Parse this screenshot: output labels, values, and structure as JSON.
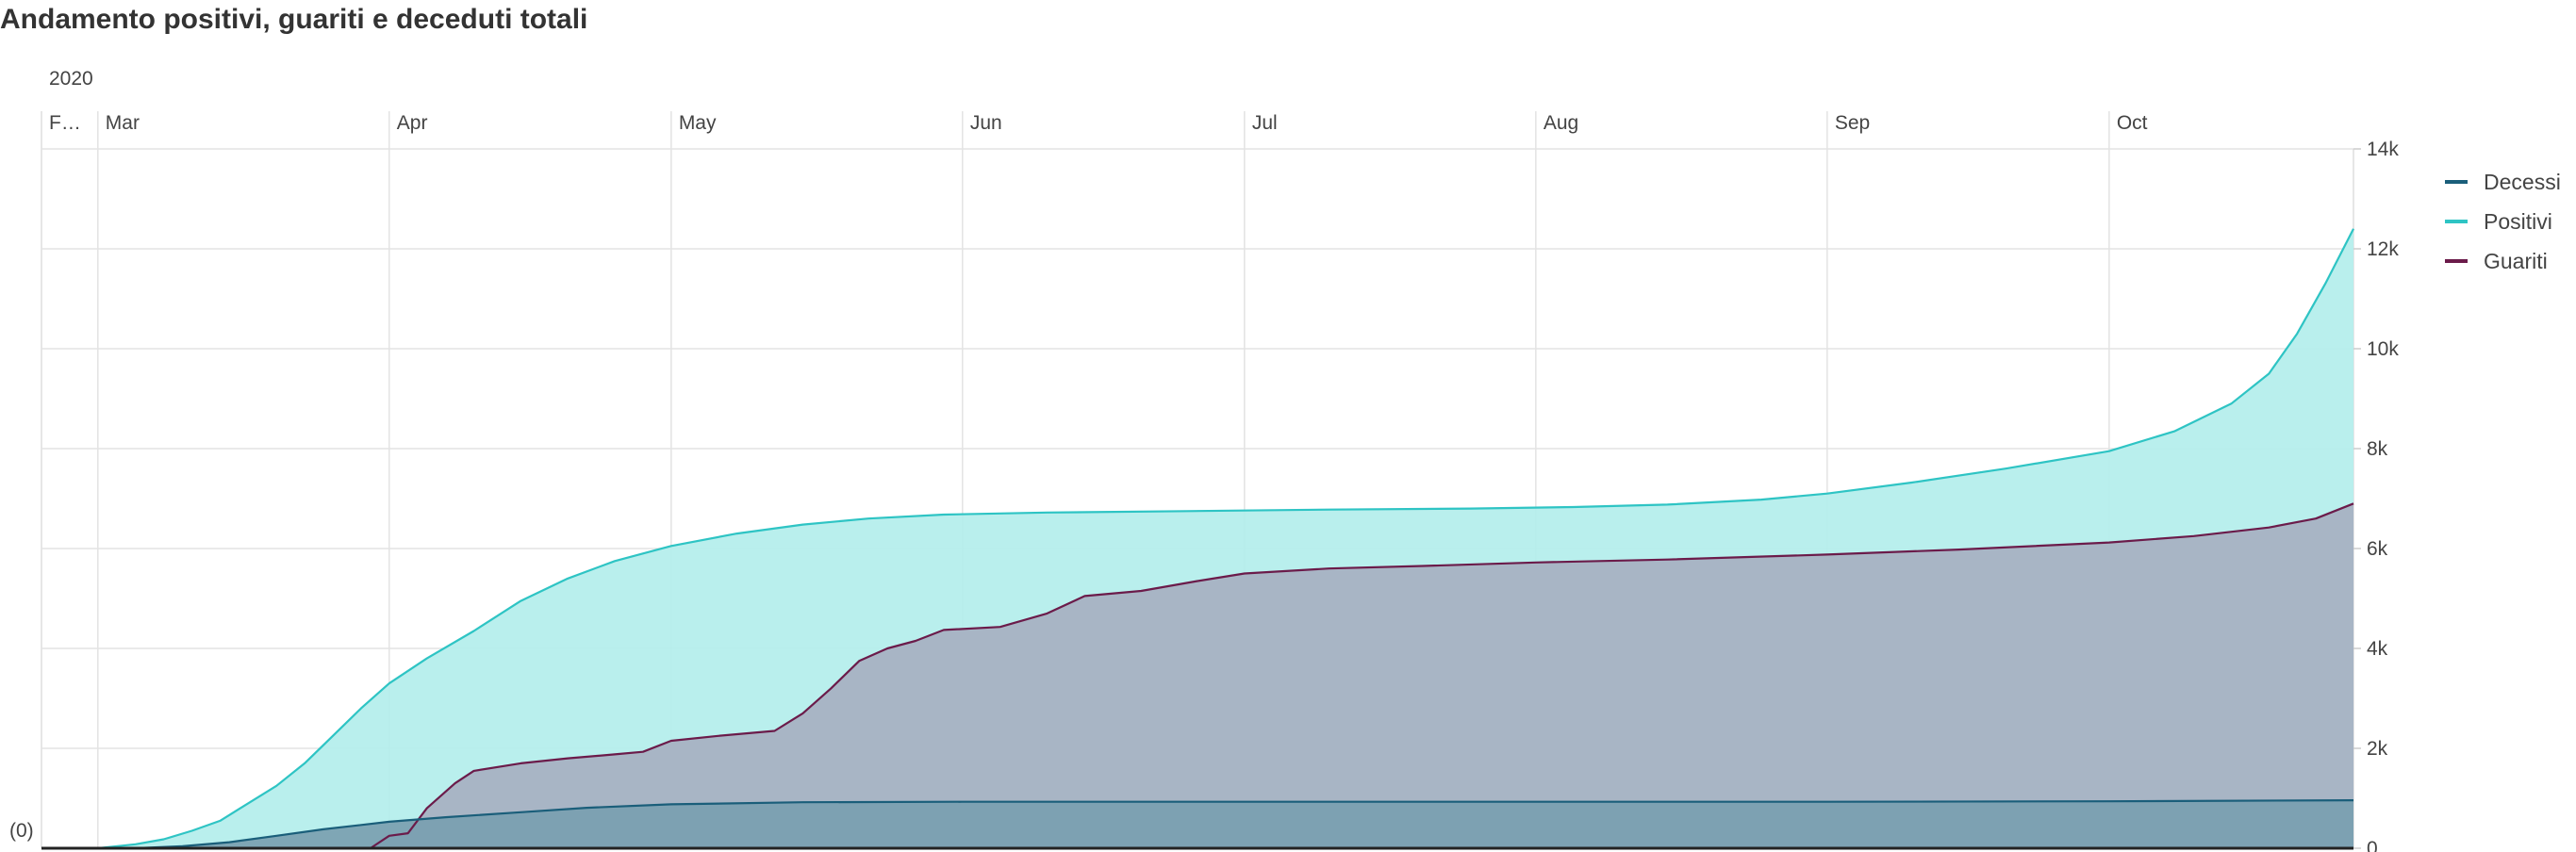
{
  "title": "Andamento positivi, guariti e deceduti totali",
  "chart_data": {
    "type": "area",
    "title": "Andamento positivi, guariti e deceduti totali",
    "year_label": "2020",
    "x_ticks": [
      {
        "label": "F…",
        "date": "2020-02-24"
      },
      {
        "label": "Mar",
        "date": "2020-03-01"
      },
      {
        "label": "Apr",
        "date": "2020-04-01"
      },
      {
        "label": "May",
        "date": "2020-05-01"
      },
      {
        "label": "Jun",
        "date": "2020-06-01"
      },
      {
        "label": "Jul",
        "date": "2020-07-01"
      },
      {
        "label": "Aug",
        "date": "2020-08-01"
      },
      {
        "label": "Sep",
        "date": "2020-09-01"
      },
      {
        "label": "Oct",
        "date": "2020-10-01"
      }
    ],
    "y_ticks": [
      {
        "label": "0",
        "value": 0
      },
      {
        "label": "2k",
        "value": 2000
      },
      {
        "label": "4k",
        "value": 4000
      },
      {
        "label": "6k",
        "value": 6000
      },
      {
        "label": "8k",
        "value": 8000
      },
      {
        "label": "10k",
        "value": 10000
      },
      {
        "label": "12k",
        "value": 12000
      },
      {
        "label": "14k",
        "value": 14000
      }
    ],
    "ylim": [
      0,
      14000
    ],
    "xlim": [
      "2020-02-24",
      "2020-10-27"
    ],
    "zero_label": "(0)",
    "grid": true,
    "legend_position": "right",
    "series": [
      {
        "name": "Positivi",
        "color": "#2ec4c4",
        "fill": "#b3eeec",
        "points": [
          [
            "2020-02-24",
            0
          ],
          [
            "2020-03-01",
            0
          ],
          [
            "2020-03-05",
            80
          ],
          [
            "2020-03-08",
            180
          ],
          [
            "2020-03-11",
            350
          ],
          [
            "2020-03-14",
            550
          ],
          [
            "2020-03-17",
            900
          ],
          [
            "2020-03-20",
            1250
          ],
          [
            "2020-03-23",
            1700
          ],
          [
            "2020-03-26",
            2250
          ],
          [
            "2020-03-29",
            2800
          ],
          [
            "2020-04-01",
            3300
          ],
          [
            "2020-04-05",
            3800
          ],
          [
            "2020-04-10",
            4350
          ],
          [
            "2020-04-15",
            4950
          ],
          [
            "2020-04-20",
            5400
          ],
          [
            "2020-04-25",
            5750
          ],
          [
            "2020-05-01",
            6050
          ],
          [
            "2020-05-08",
            6300
          ],
          [
            "2020-05-15",
            6480
          ],
          [
            "2020-05-22",
            6600
          ],
          [
            "2020-05-30",
            6680
          ],
          [
            "2020-06-10",
            6720
          ],
          [
            "2020-06-25",
            6750
          ],
          [
            "2020-07-10",
            6780
          ],
          [
            "2020-07-25",
            6800
          ],
          [
            "2020-08-05",
            6830
          ],
          [
            "2020-08-15",
            6880
          ],
          [
            "2020-08-25",
            6980
          ],
          [
            "2020-09-01",
            7100
          ],
          [
            "2020-09-10",
            7320
          ],
          [
            "2020-09-20",
            7600
          ],
          [
            "2020-10-01",
            7950
          ],
          [
            "2020-10-08",
            8350
          ],
          [
            "2020-10-14",
            8900
          ],
          [
            "2020-10-18",
            9500
          ],
          [
            "2020-10-21",
            10300
          ],
          [
            "2020-10-24",
            11300
          ],
          [
            "2020-10-27",
            12400
          ]
        ]
      },
      {
        "name": "Guariti",
        "color": "#6b1b4a",
        "fill": "#a6b0c1",
        "points": [
          [
            "2020-02-24",
            0
          ],
          [
            "2020-03-30",
            0
          ],
          [
            "2020-04-01",
            250
          ],
          [
            "2020-04-03",
            300
          ],
          [
            "2020-04-05",
            800
          ],
          [
            "2020-04-08",
            1300
          ],
          [
            "2020-04-10",
            1550
          ],
          [
            "2020-04-15",
            1700
          ],
          [
            "2020-04-20",
            1800
          ],
          [
            "2020-04-25",
            1880
          ],
          [
            "2020-04-28",
            1930
          ],
          [
            "2020-05-01",
            2150
          ],
          [
            "2020-05-06",
            2250
          ],
          [
            "2020-05-12",
            2350
          ],
          [
            "2020-05-15",
            2700
          ],
          [
            "2020-05-18",
            3200
          ],
          [
            "2020-05-21",
            3750
          ],
          [
            "2020-05-24",
            4000
          ],
          [
            "2020-05-27",
            4150
          ],
          [
            "2020-05-30",
            4370
          ],
          [
            "2020-06-05",
            4430
          ],
          [
            "2020-06-10",
            4700
          ],
          [
            "2020-06-14",
            5050
          ],
          [
            "2020-06-20",
            5150
          ],
          [
            "2020-06-26",
            5350
          ],
          [
            "2020-07-01",
            5500
          ],
          [
            "2020-07-10",
            5600
          ],
          [
            "2020-07-20",
            5650
          ],
          [
            "2020-08-01",
            5720
          ],
          [
            "2020-08-15",
            5780
          ],
          [
            "2020-09-01",
            5880
          ],
          [
            "2020-09-15",
            5980
          ],
          [
            "2020-10-01",
            6120
          ],
          [
            "2020-10-10",
            6250
          ],
          [
            "2020-10-18",
            6420
          ],
          [
            "2020-10-23",
            6600
          ],
          [
            "2020-10-27",
            6900
          ]
        ]
      },
      {
        "name": "Decessi",
        "color": "#1a5e7a",
        "fill": "#7a9fb0",
        "points": [
          [
            "2020-02-24",
            0
          ],
          [
            "2020-03-05",
            0
          ],
          [
            "2020-03-10",
            40
          ],
          [
            "2020-03-15",
            120
          ],
          [
            "2020-03-20",
            250
          ],
          [
            "2020-03-25",
            380
          ],
          [
            "2020-04-01",
            530
          ],
          [
            "2020-04-07",
            620
          ],
          [
            "2020-04-15",
            720
          ],
          [
            "2020-04-22",
            810
          ],
          [
            "2020-05-01",
            880
          ],
          [
            "2020-05-15",
            920
          ],
          [
            "2020-06-01",
            930
          ],
          [
            "2020-07-01",
            930
          ],
          [
            "2020-08-01",
            930
          ],
          [
            "2020-09-01",
            930
          ],
          [
            "2020-10-01",
            940
          ],
          [
            "2020-10-27",
            960
          ]
        ]
      }
    ],
    "legend": [
      "Decessi",
      "Positivi",
      "Guariti"
    ]
  }
}
